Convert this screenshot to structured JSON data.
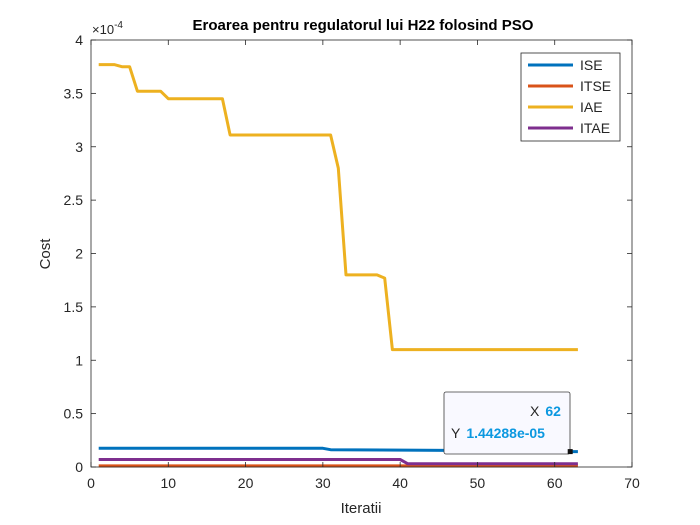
{
  "chart_data": {
    "type": "line",
    "title": "Eroarea pentru regulatorul lui H22 folosind PSO",
    "xlabel": "Iteratii",
    "ylabel": "Cost",
    "y_exponent": "×10",
    "y_exponent_power": "-4",
    "xlim": [
      0,
      70
    ],
    "ylim": [
      0,
      4
    ],
    "xticks": [
      "0",
      "10",
      "20",
      "30",
      "40",
      "50",
      "60",
      "70"
    ],
    "yticks": [
      "0",
      "0.5",
      "1",
      "1.5",
      "2",
      "2.5",
      "3",
      "3.5",
      "4"
    ],
    "grid": false,
    "legend_position": "top-right",
    "series": [
      {
        "name": "ISE",
        "color": "#0072BD",
        "points": [
          [
            1,
            0.175
          ],
          [
            30,
            0.175
          ],
          [
            31,
            0.162
          ],
          [
            61,
            0.15
          ],
          [
            62,
            0.144288
          ],
          [
            63,
            0.144
          ]
        ]
      },
      {
        "name": "ITSE",
        "color": "#D95319",
        "points": [
          [
            1,
            0.01
          ],
          [
            63,
            0.01
          ]
        ]
      },
      {
        "name": "IAE",
        "color": "#EDB120",
        "points": [
          [
            1,
            3.77
          ],
          [
            3,
            3.77
          ],
          [
            4,
            3.75
          ],
          [
            5,
            3.75
          ],
          [
            6,
            3.52
          ],
          [
            9,
            3.52
          ],
          [
            10,
            3.45
          ],
          [
            17,
            3.45
          ],
          [
            18,
            3.11
          ],
          [
            31,
            3.11
          ],
          [
            32,
            2.8
          ],
          [
            33,
            1.8
          ],
          [
            37,
            1.8
          ],
          [
            38,
            1.77
          ],
          [
            39,
            1.1
          ],
          [
            63,
            1.1
          ]
        ]
      },
      {
        "name": "ITAE",
        "color": "#7E2F8E",
        "points": [
          [
            1,
            0.07
          ],
          [
            40,
            0.07
          ],
          [
            41,
            0.03
          ],
          [
            63,
            0.03
          ]
        ]
      }
    ],
    "datatip": {
      "x_label": "X",
      "x_value": "62",
      "y_label": "Y",
      "y_value": "1.44288e-05",
      "point": [
        62,
        0.144288
      ]
    }
  }
}
